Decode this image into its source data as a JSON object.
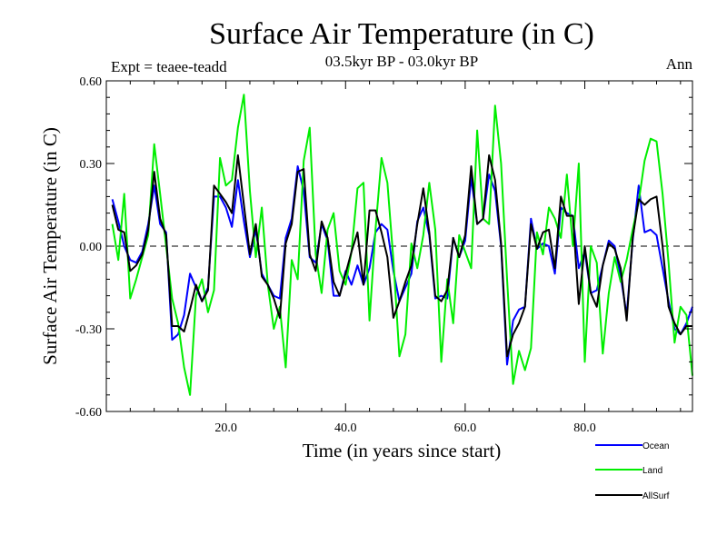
{
  "chart_data": {
    "type": "line",
    "title": "Surface Air Temperature (in C)",
    "subtitle": "03.5kyr BP - 03.0kyr BP",
    "expt_label": "Expt = teaee-teadd",
    "period_label": "Ann",
    "xlabel": "Time (in years since start)",
    "ylabel": "Surface Air Temperature (in C)",
    "xlim": [
      0,
      98
    ],
    "ylim": [
      -0.6,
      0.6
    ],
    "x_ticks": [
      20,
      40,
      60,
      80
    ],
    "x_tick_labels": [
      "20.0",
      "40.0",
      "60.0",
      "80.0"
    ],
    "y_ticks": [
      -0.6,
      -0.3,
      0.0,
      0.3,
      0.6
    ],
    "y_tick_labels": [
      "-0.60",
      "-0.30",
      "0.00",
      "0.30",
      "0.60"
    ],
    "reference_line": 0.0,
    "legend_position": "below-right",
    "series": [
      {
        "name": "Ocean",
        "color": "#0000ff",
        "values": [
          0.17,
          0.09,
          0.0,
          -0.05,
          -0.06,
          -0.02,
          0.08,
          0.22,
          0.08,
          0.05,
          -0.34,
          -0.32,
          -0.25,
          -0.1,
          -0.15,
          -0.2,
          -0.15,
          0.18,
          0.18,
          0.14,
          0.07,
          0.24,
          0.09,
          -0.04,
          0.06,
          -0.1,
          -0.14,
          -0.18,
          -0.19,
          0.03,
          0.1,
          0.29,
          0.2,
          -0.04,
          -0.06,
          0.08,
          0.02,
          -0.18,
          -0.18,
          -0.09,
          -0.14,
          -0.07,
          -0.14,
          -0.08,
          0.05,
          0.08,
          0.06,
          -0.09,
          -0.2,
          -0.15,
          -0.1,
          0.09,
          0.14,
          0.04,
          -0.19,
          -0.18,
          -0.19,
          0.03,
          -0.04,
          0.02,
          0.25,
          0.08,
          0.1,
          0.26,
          0.2,
          0.0,
          -0.43,
          -0.27,
          -0.23,
          -0.22,
          0.1,
          -0.01,
          0.01,
          0.0,
          -0.1,
          0.14,
          0.12,
          0.11,
          -0.08,
          -0.02,
          -0.17,
          -0.16,
          -0.07,
          0.02,
          0.0,
          -0.11,
          -0.25,
          0.02,
          0.22,
          0.05,
          0.06,
          0.04,
          -0.08,
          -0.2,
          -0.3,
          -0.32,
          -0.28,
          -0.22
        ]
      },
      {
        "name": "Land",
        "color": "#00ee00",
        "values": [
          0.08,
          -0.05,
          0.19,
          -0.19,
          -0.12,
          -0.04,
          0.04,
          0.37,
          0.19,
          0.0,
          -0.19,
          -0.28,
          -0.44,
          -0.54,
          -0.18,
          -0.12,
          -0.24,
          -0.16,
          0.32,
          0.22,
          0.24,
          0.43,
          0.55,
          0.2,
          -0.04,
          0.14,
          -0.14,
          -0.3,
          -0.22,
          -0.44,
          -0.05,
          -0.12,
          0.31,
          0.43,
          -0.03,
          -0.17,
          0.06,
          0.12,
          -0.09,
          -0.14,
          -0.02,
          0.21,
          0.23,
          -0.27,
          0.06,
          0.32,
          0.23,
          -0.05,
          -0.4,
          -0.32,
          0.01,
          -0.08,
          0.04,
          0.23,
          0.06,
          -0.42,
          -0.12,
          -0.28,
          0.04,
          -0.02,
          -0.08,
          0.42,
          0.1,
          0.08,
          0.51,
          0.3,
          -0.12,
          -0.5,
          -0.38,
          -0.45,
          -0.37,
          0.05,
          -0.03,
          0.14,
          0.1,
          0.03,
          0.26,
          0.0,
          0.3,
          -0.42,
          0.0,
          -0.06,
          -0.39,
          -0.17,
          -0.04,
          -0.13,
          -0.05,
          0.06,
          0.16,
          0.31,
          0.39,
          0.38,
          0.19,
          -0.06,
          -0.35,
          -0.22,
          -0.25,
          -0.47
        ]
      },
      {
        "name": "AllSurf",
        "color": "#000000",
        "values": [
          0.15,
          0.06,
          0.05,
          -0.09,
          -0.07,
          -0.03,
          0.06,
          0.27,
          0.1,
          0.04,
          -0.29,
          -0.29,
          -0.31,
          -0.23,
          -0.14,
          -0.2,
          -0.16,
          0.22,
          0.19,
          0.16,
          0.12,
          0.33,
          0.15,
          -0.03,
          0.08,
          -0.11,
          -0.14,
          -0.19,
          -0.26,
          0.01,
          0.08,
          0.27,
          0.28,
          -0.03,
          -0.09,
          0.09,
          0.03,
          -0.13,
          -0.18,
          -0.1,
          -0.02,
          0.05,
          -0.14,
          0.13,
          0.13,
          0.05,
          -0.04,
          -0.26,
          -0.2,
          -0.13,
          -0.07,
          0.08,
          0.21,
          0.05,
          -0.18,
          -0.2,
          -0.16,
          0.03,
          -0.04,
          0.04,
          0.29,
          0.08,
          0.1,
          0.33,
          0.24,
          0.01,
          -0.4,
          -0.32,
          -0.28,
          -0.22,
          0.08,
          -0.01,
          0.05,
          0.06,
          -0.08,
          0.18,
          0.11,
          0.11,
          -0.21,
          0.0,
          -0.17,
          -0.22,
          -0.07,
          0.01,
          -0.01,
          -0.08,
          -0.27,
          0.03,
          0.17,
          0.15,
          0.17,
          0.18,
          0.0,
          -0.22,
          -0.28,
          -0.32,
          -0.29,
          -0.29
        ]
      }
    ]
  }
}
